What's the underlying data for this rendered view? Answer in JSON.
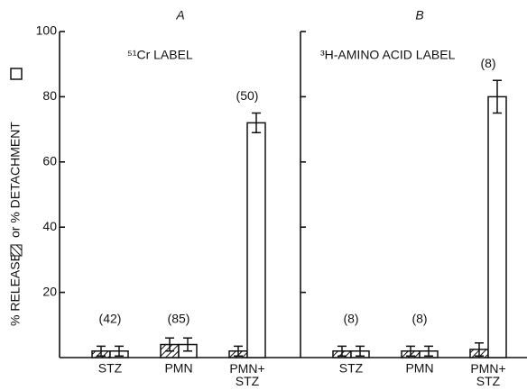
{
  "chart_data": [
    {
      "type": "bar",
      "title": "A",
      "subtitle": "⁵¹Cr LABEL",
      "ylabel": [
        "% RELEASE",
        "or % DETACHMENT"
      ],
      "categories": [
        "STZ",
        "PMN",
        "PMN+ STZ"
      ],
      "series": [
        {
          "pattern": "hatch",
          "color": "#111",
          "values": [
            2,
            4,
            2
          ],
          "errors": [
            1.5,
            2,
            1.5
          ]
        },
        {
          "pattern": "open",
          "color": "#111",
          "values": [
            2,
            4,
            72
          ],
          "errors": [
            1.5,
            2,
            3
          ]
        }
      ],
      "count_labels": [
        "(42)",
        "(85)",
        "(50)"
      ],
      "ylim": [
        0,
        100
      ],
      "yticks": [
        20,
        40,
        60,
        80,
        100
      ]
    },
    {
      "type": "bar",
      "title": "B",
      "subtitle": "³H-AMINO ACID LABEL",
      "categories": [
        "STZ",
        "PMN",
        "PMN+ STZ"
      ],
      "series": [
        {
          "pattern": "hatch",
          "color": "#111",
          "values": [
            2,
            2,
            2.5
          ],
          "errors": [
            1.5,
            1.5,
            2
          ]
        },
        {
          "pattern": "open",
          "color": "#111",
          "values": [
            2,
            2,
            80
          ],
          "errors": [
            1.5,
            1.5,
            5
          ]
        }
      ],
      "count_labels": [
        "(8)",
        "(8)",
        "(8)"
      ],
      "ylim": [
        0,
        100
      ],
      "yticks": [
        20,
        40,
        60,
        80,
        100
      ]
    }
  ]
}
